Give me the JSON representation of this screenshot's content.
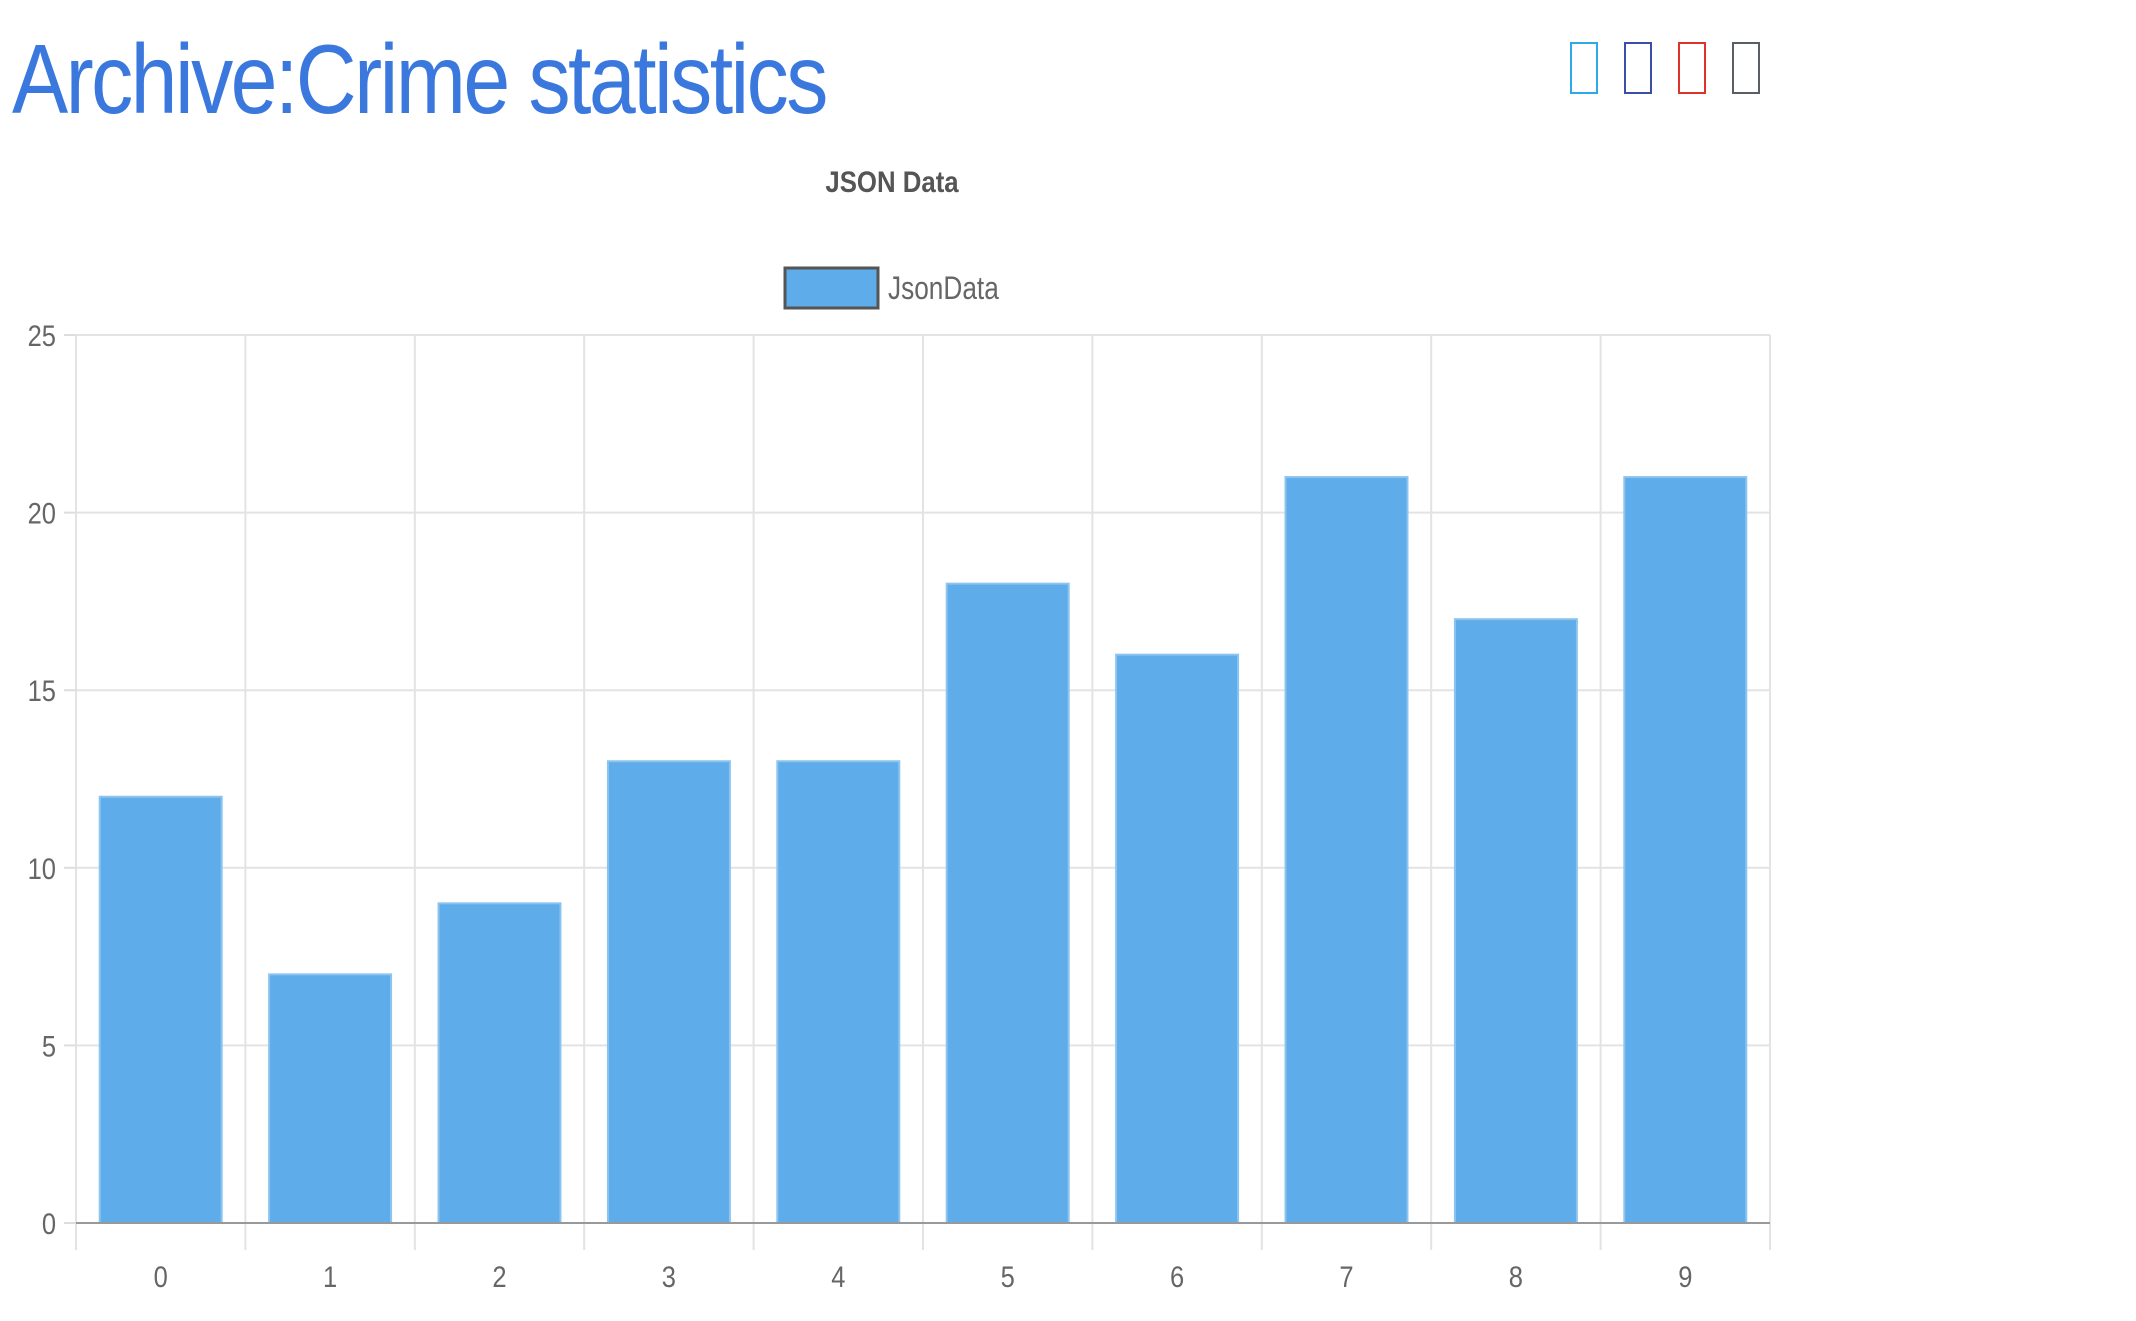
{
  "page": {
    "title": "Archive:Crime statistics"
  },
  "share_icons": [
    {
      "name": "share-icon-1",
      "color": "#2ea8e8"
    },
    {
      "name": "share-icon-2",
      "color": "#3b4fa8"
    },
    {
      "name": "share-icon-3",
      "color": "#e0312a"
    },
    {
      "name": "share-icon-4",
      "color": "#5a5f66"
    }
  ],
  "chart_data": {
    "type": "bar",
    "title": "JSON Data",
    "xlabel": "",
    "ylabel": "",
    "categories": [
      "0",
      "1",
      "2",
      "3",
      "4",
      "5",
      "6",
      "7",
      "8",
      "9"
    ],
    "series": [
      {
        "name": "JsonData",
        "values": [
          12,
          7,
          9,
          13,
          13,
          18,
          16,
          21,
          17,
          21
        ],
        "color": "#5eace9",
        "border_color": "#555555"
      }
    ],
    "ylim": [
      0,
      25
    ],
    "yticks": [
      "0",
      "5",
      "10",
      "15",
      "20",
      "25"
    ],
    "grid": true,
    "legend_position": "top"
  }
}
